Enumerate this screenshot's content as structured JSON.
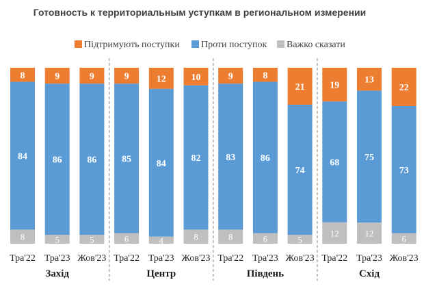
{
  "chart_data": {
    "type": "bar",
    "stacked": true,
    "title": "Готовность к территориальным уступкам в региональном измерении",
    "legend": {
      "position": "top",
      "entries": [
        "Підтримують поступки",
        "Проти поступок",
        "Важко сказати"
      ]
    },
    "colors": {
      "support": "#ED7D31",
      "against": "#5B9BD5",
      "hard": "#BFBFBF"
    },
    "groups": [
      {
        "name": "Захід",
        "categories": [
          "Тра'22",
          "Тра'23",
          "Жов'23"
        ]
      },
      {
        "name": "Центр",
        "categories": [
          "Тра'22",
          "Тра'23",
          "Жов'23"
        ]
      },
      {
        "name": "Південь",
        "categories": [
          "Тра'22",
          "Тра'23",
          "Жов'23"
        ]
      },
      {
        "name": "Схід",
        "categories": [
          "Тра'22",
          "Тра'23",
          "Жов'23"
        ]
      }
    ],
    "categories": [
      "Тра'22",
      "Тра'23",
      "Жов'23",
      "Тра'22",
      "Тра'23",
      "Жов'23",
      "Тра'22",
      "Тра'23",
      "Жов'23",
      "Тра'22",
      "Тра'23",
      "Жов'23"
    ],
    "series": [
      {
        "name": "Підтримують поступки",
        "values": [
          8,
          9,
          9,
          9,
          12,
          10,
          9,
          8,
          21,
          19,
          13,
          22
        ]
      },
      {
        "name": "Проти поступок",
        "values": [
          84,
          86,
          86,
          85,
          84,
          82,
          83,
          86,
          74,
          68,
          75,
          73
        ]
      },
      {
        "name": "Важко сказати",
        "values": [
          8,
          5,
          5,
          6,
          4,
          8,
          8,
          6,
          5,
          12,
          12,
          6
        ]
      }
    ],
    "ylim": [
      0,
      100
    ],
    "grid": false
  }
}
